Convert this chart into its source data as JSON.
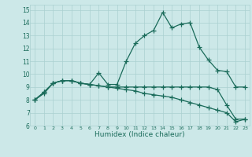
{
  "xlabel": "Humidex (Indice chaleur)",
  "xlim": [
    -0.5,
    23.5
  ],
  "ylim": [
    6,
    15.4
  ],
  "xticks": [
    0,
    1,
    2,
    3,
    4,
    5,
    6,
    7,
    8,
    9,
    10,
    11,
    12,
    13,
    14,
    15,
    16,
    17,
    18,
    19,
    20,
    21,
    22,
    23
  ],
  "yticks": [
    6,
    7,
    8,
    9,
    10,
    11,
    12,
    13,
    14,
    15
  ],
  "bg_color": "#cce8e8",
  "grid_color": "#aad0d0",
  "line_color": "#1a6b5a",
  "line1_x": [
    0,
    1,
    2,
    3,
    4,
    5,
    6,
    7,
    8,
    9,
    10,
    11,
    12,
    13,
    14,
    15,
    16,
    17,
    18,
    19,
    20,
    21,
    22,
    23
  ],
  "line1_y": [
    8.0,
    8.5,
    9.3,
    9.5,
    9.5,
    9.3,
    9.2,
    10.1,
    9.2,
    9.2,
    11.0,
    12.4,
    13.0,
    13.4,
    14.8,
    13.6,
    13.9,
    14.0,
    12.1,
    11.1,
    10.3,
    10.2,
    9.0,
    9.0
  ],
  "line2_x": [
    0,
    1,
    2,
    3,
    4,
    5,
    6,
    7,
    8,
    9,
    10,
    11,
    12,
    13,
    14,
    15,
    16,
    17,
    18,
    19,
    20,
    21,
    22,
    23
  ],
  "line2_y": [
    8.0,
    8.6,
    9.3,
    9.5,
    9.5,
    9.3,
    9.2,
    9.1,
    9.0,
    8.9,
    8.8,
    8.7,
    8.5,
    8.4,
    8.3,
    8.2,
    8.0,
    7.8,
    7.6,
    7.4,
    7.2,
    7.0,
    6.3,
    6.5
  ],
  "line3_x": [
    0,
    1,
    2,
    3,
    4,
    5,
    6,
    7,
    8,
    9,
    10,
    11,
    12,
    13,
    14,
    15,
    16,
    17,
    18,
    19,
    20,
    21,
    22,
    23
  ],
  "line3_y": [
    8.0,
    8.6,
    9.3,
    9.5,
    9.5,
    9.3,
    9.2,
    9.1,
    9.0,
    9.0,
    9.0,
    9.0,
    9.0,
    9.0,
    9.0,
    9.0,
    9.0,
    9.0,
    9.0,
    9.0,
    8.8,
    7.6,
    6.5,
    6.5
  ]
}
